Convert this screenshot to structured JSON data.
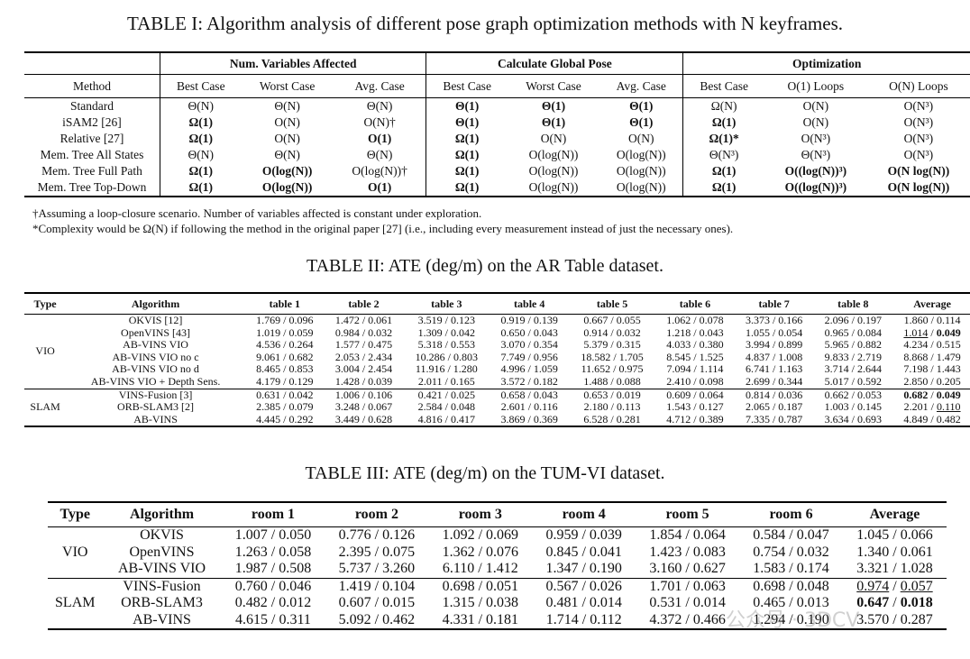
{
  "table1": {
    "caption": "TABLE I: Algorithm analysis of different pose graph optimization methods with N keyframes.",
    "group_headers": [
      "Num. Variables Affected",
      "Calculate Global Pose",
      "Optimization"
    ],
    "columns": [
      "Method",
      "Best Case",
      "Worst Case",
      "Avg. Case",
      "Best Case",
      "Worst Case",
      "Avg. Case",
      "Best Case",
      "O(1) Loops",
      "O(N) Loops"
    ],
    "rows": [
      {
        "method": "Standard",
        "cells": [
          "Θ(N)",
          "Θ(N)",
          "Θ(N)",
          "Θ(1)",
          "Θ(1)",
          "Θ(1)",
          "Ω(N)",
          "O(N)",
          "O(N³)"
        ]
      },
      {
        "method": "iSAM2 [26]",
        "cells": [
          "Ω(1)",
          "O(N)",
          "O(N)†",
          "Θ(1)",
          "Θ(1)",
          "Θ(1)",
          "Ω(1)",
          "O(N)",
          "O(N³)"
        ]
      },
      {
        "method": "Relative [27]",
        "cells": [
          "Ω(1)",
          "O(N)",
          "O(1)",
          "Ω(1)",
          "O(N)",
          "O(N)",
          "Ω(1)*",
          "O(N³)",
          "O(N³)"
        ]
      },
      {
        "method": "Mem. Tree All States",
        "cells": [
          "Θ(N)",
          "Θ(N)",
          "Θ(N)",
          "Ω(1)",
          "O(log(N))",
          "O(log(N))",
          "Θ(N³)",
          "Θ(N³)",
          "O(N³)"
        ]
      },
      {
        "method": "Mem. Tree Full Path",
        "cells": [
          "Ω(1)",
          "O(log(N))",
          "O(log(N))†",
          "Ω(1)",
          "O(log(N))",
          "O(log(N))",
          "Ω(1)",
          "O((log(N))³)",
          "O(N log(N))"
        ]
      },
      {
        "method": "Mem. Tree Top-Down",
        "cells": [
          "Ω(1)",
          "O(log(N))",
          "O(1)",
          "Ω(1)",
          "O(log(N))",
          "O(log(N))",
          "Ω(1)",
          "O((log(N))³)",
          "O(N log(N))"
        ]
      }
    ],
    "notes": [
      "†Assuming a loop-closure scenario. Number of variables affected is constant under exploration.",
      "*Complexity would be Ω(N) if following the method in the original paper [27] (i.e., including every measurement instead of just the necessary ones)."
    ]
  },
  "table2": {
    "caption": "TABLE II: ATE (deg/m) on the AR Table dataset.",
    "columns": [
      "Type",
      "Algorithm",
      "table 1",
      "table 2",
      "table 3",
      "table 4",
      "table 5",
      "table 6",
      "table 7",
      "table 8",
      "Average"
    ],
    "groups": [
      {
        "type": "VIO",
        "rows": [
          {
            "algorithm": "OKVIS [12]",
            "cells": [
              "1.769 / 0.096",
              "1.472 / 0.061",
              "3.519 / 0.123",
              "0.919 / 0.139",
              "0.667 / 0.055",
              "1.062 / 0.078",
              "3.373 / 0.166",
              "2.096 / 0.197",
              "1.860 / 0.114"
            ]
          },
          {
            "algorithm": "OpenVINS [43]",
            "cells": [
              "1.019 / 0.059",
              "0.984 / 0.032",
              "1.309 / 0.042",
              "0.650 / 0.043",
              "0.914 / 0.032",
              "1.218 / 0.043",
              "1.055 / 0.054",
              "0.965 / 0.084",
              "1.014 / 0.049"
            ]
          },
          {
            "algorithm": "AB-VINS VIO",
            "cells": [
              "4.536 / 0.264",
              "1.577 / 0.475",
              "5.318 / 0.553",
              "3.070 / 0.354",
              "5.379 / 0.315",
              "4.033 / 0.380",
              "3.994 / 0.899",
              "5.965 / 0.882",
              "4.234 / 0.515"
            ]
          },
          {
            "algorithm": "AB-VINS VIO no c",
            "cells": [
              "9.061 / 0.682",
              "2.053 / 2.434",
              "10.286 / 0.803",
              "7.749 / 0.956",
              "18.582 / 1.705",
              "8.545 / 1.525",
              "4.837 / 1.008",
              "9.833 / 2.719",
              "8.868 / 1.479"
            ]
          },
          {
            "algorithm": "AB-VINS VIO no d",
            "cells": [
              "8.465 / 0.853",
              "3.004 / 2.454",
              "11.916 / 1.280",
              "4.996 / 1.059",
              "11.652 / 0.975",
              "7.094 / 1.114",
              "6.741 / 1.163",
              "3.714 / 2.644",
              "7.198 / 1.443"
            ]
          },
          {
            "algorithm": "AB-VINS VIO + Depth Sens.",
            "cells": [
              "4.179 / 0.129",
              "1.428 / 0.039",
              "2.011 / 0.165",
              "3.572 / 0.182",
              "1.488 / 0.088",
              "2.410 / 0.098",
              "2.699 / 0.344",
              "5.017 / 0.592",
              "2.850 / 0.205"
            ]
          }
        ]
      },
      {
        "type": "SLAM",
        "rows": [
          {
            "algorithm": "VINS-Fusion [3]",
            "cells": [
              "0.631 / 0.042",
              "1.006 / 0.106",
              "0.421 / 0.025",
              "0.658 / 0.043",
              "0.653 / 0.019",
              "0.609 / 0.064",
              "0.814 / 0.036",
              "0.662 / 0.053",
              "0.682 / 0.049"
            ]
          },
          {
            "algorithm": "ORB-SLAM3 [2]",
            "cells": [
              "2.385 / 0.079",
              "3.248 / 0.067",
              "2.584 / 0.048",
              "2.601 / 0.116",
              "2.180 / 0.113",
              "1.543 / 0.127",
              "2.065 / 0.187",
              "1.003 / 0.145",
              "2.201 / 0.110"
            ]
          },
          {
            "algorithm": "AB-VINS",
            "cells": [
              "4.445 / 0.292",
              "3.449 / 0.628",
              "4.816 / 0.417",
              "3.869 / 0.369",
              "6.528 / 0.281",
              "4.712 / 0.389",
              "7.335 / 0.787",
              "3.634 / 0.693",
              "4.849 / 0.482"
            ]
          }
        ]
      }
    ]
  },
  "table3": {
    "caption": "TABLE III: ATE (deg/m) on the TUM-VI dataset.",
    "columns": [
      "Type",
      "Algorithm",
      "room 1",
      "room 2",
      "room 3",
      "room 4",
      "room 5",
      "room 6",
      "Average"
    ],
    "groups": [
      {
        "type": "VIO",
        "rows": [
          {
            "algorithm": "OKVIS",
            "cells": [
              "1.007 / 0.050",
              "0.776 / 0.126",
              "1.092 / 0.069",
              "0.959 / 0.039",
              "1.854 / 0.064",
              "0.584 / 0.047",
              "1.045 / 0.066"
            ]
          },
          {
            "algorithm": "OpenVINS",
            "cells": [
              "1.263 / 0.058",
              "2.395 / 0.075",
              "1.362 / 0.076",
              "0.845 / 0.041",
              "1.423 / 0.083",
              "0.754 / 0.032",
              "1.340 / 0.061"
            ]
          },
          {
            "algorithm": "AB-VINS VIO",
            "cells": [
              "1.987 / 0.508",
              "5.737 / 3.260",
              "6.110 / 1.412",
              "1.347 / 0.190",
              "3.160 / 0.627",
              "1.583 / 0.174",
              "3.321 / 1.028"
            ]
          }
        ]
      },
      {
        "type": "SLAM",
        "rows": [
          {
            "algorithm": "VINS-Fusion",
            "cells": [
              "0.760 / 0.046",
              "1.419 / 0.104",
              "0.698 / 0.051",
              "0.567 / 0.026",
              "1.701 / 0.063",
              "0.698 / 0.048",
              "0.974 / 0.057"
            ]
          },
          {
            "algorithm": "ORB-SLAM3",
            "cells": [
              "0.482 / 0.012",
              "0.607 / 0.015",
              "1.315 / 0.038",
              "0.481 / 0.014",
              "0.531 / 0.014",
              "0.465 / 0.013",
              "0.647 / 0.018"
            ]
          },
          {
            "algorithm": "AB-VINS",
            "cells": [
              "4.615 / 0.311",
              "5.092 / 0.462",
              "4.331 / 0.181",
              "1.714 / 0.112",
              "4.372 / 0.466",
              "1.294 / 0.190",
              "3.570 / 0.287"
            ]
          }
        ]
      }
    ]
  },
  "watermark": "公众号 · 3DCV"
}
